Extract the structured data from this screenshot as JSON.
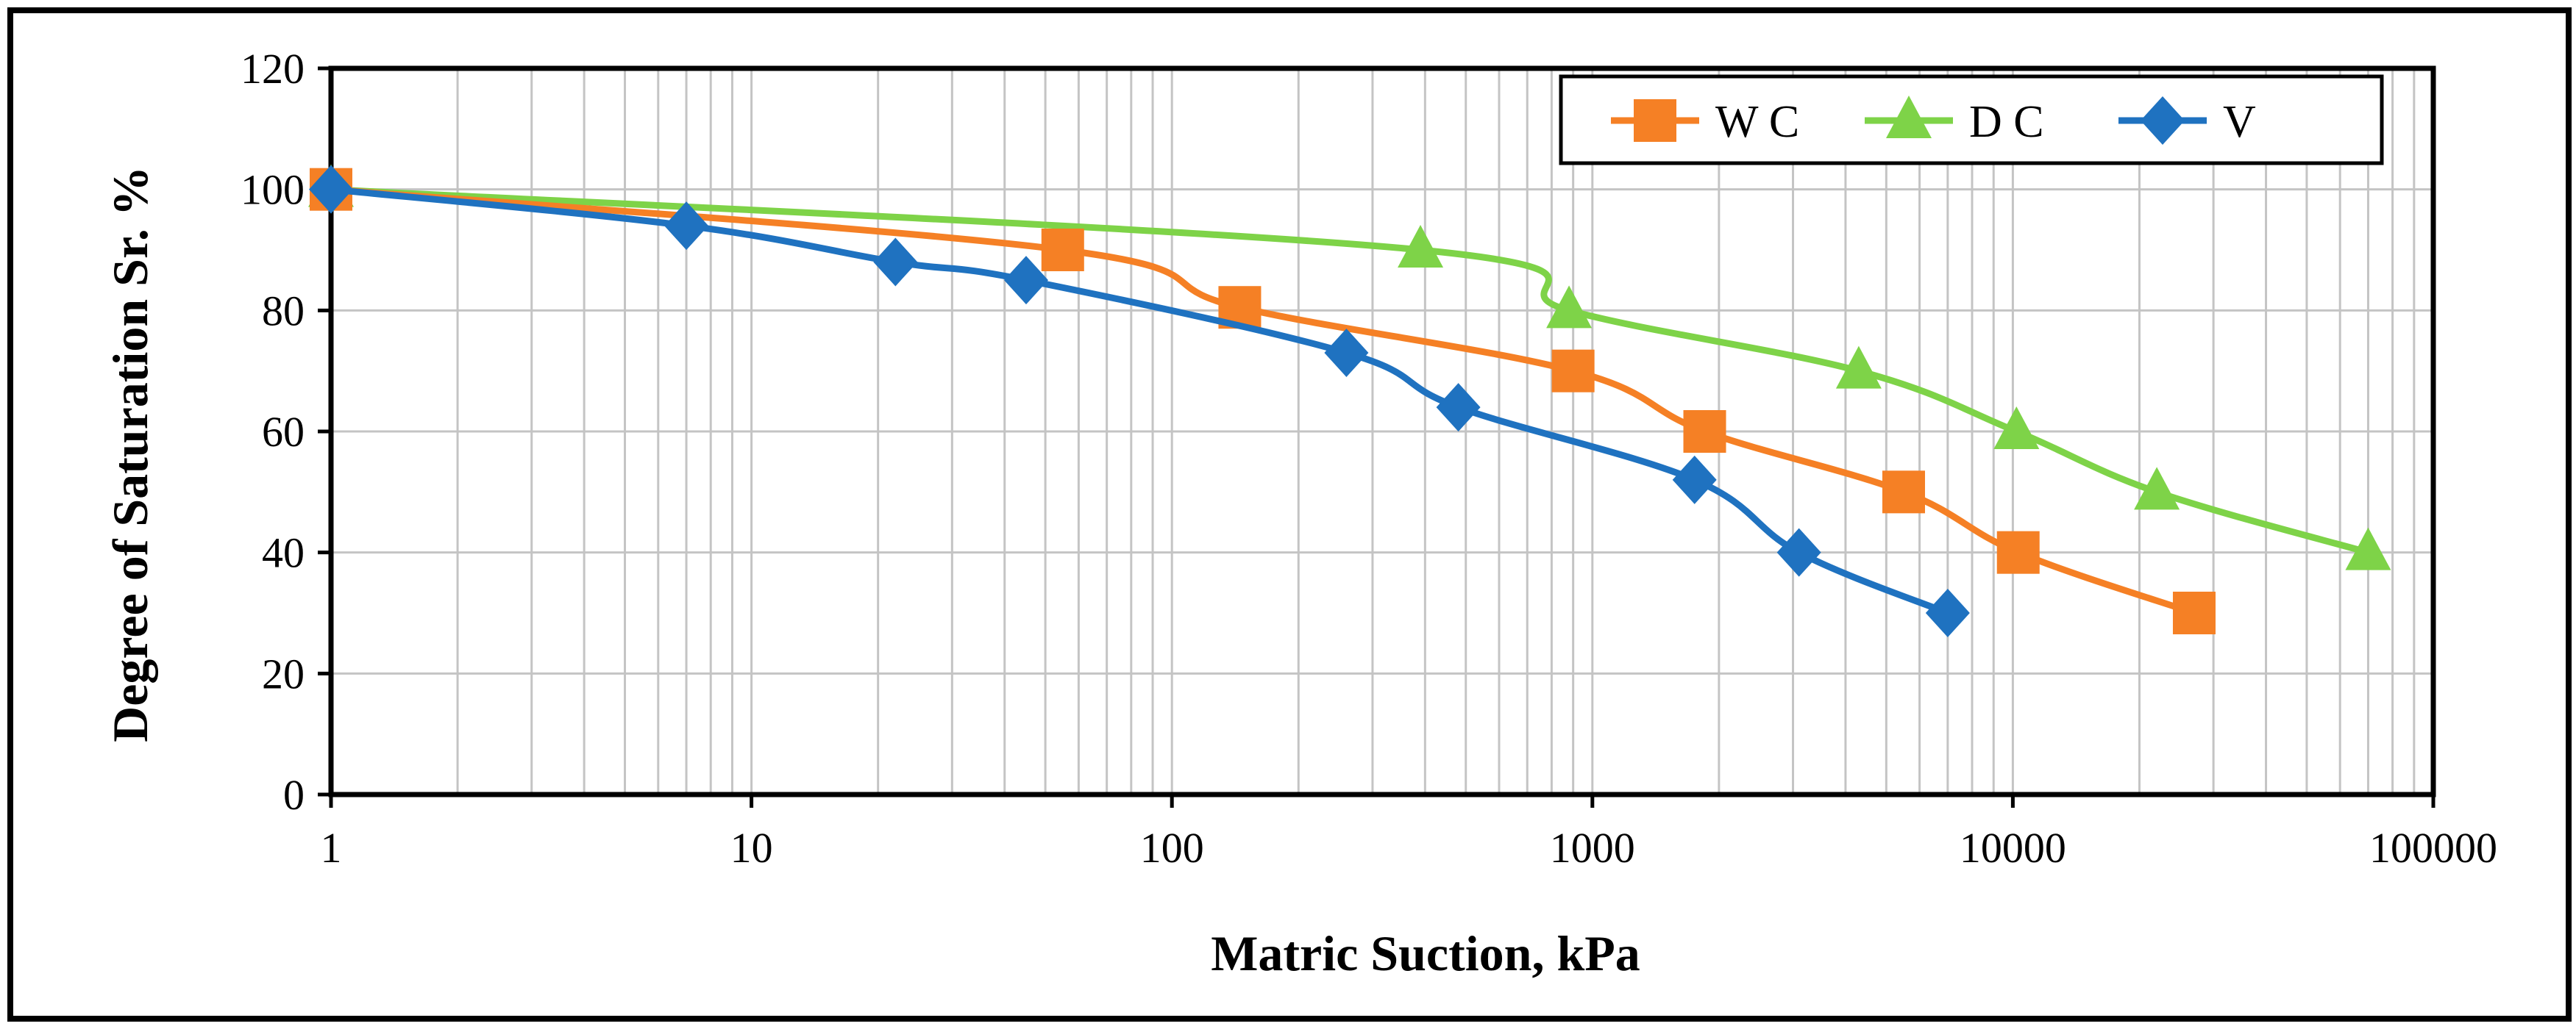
{
  "chart_data": {
    "type": "line",
    "xscale": "log",
    "xlabel": "Matric Suction, kPa",
    "ylabel": "Degree of Saturation Sr. %",
    "xlim": [
      1,
      100000
    ],
    "ylim": [
      0,
      120
    ],
    "x_ticks": [
      "1",
      "10",
      "100",
      "1000",
      "10000",
      "100000"
    ],
    "y_ticks": [
      "0",
      "20",
      "40",
      "60",
      "80",
      "100",
      "120"
    ],
    "grid": true,
    "legend_position": "top-right",
    "series": [
      {
        "name": "W C",
        "color": "#f58025",
        "marker": "square",
        "points": [
          [
            1,
            100
          ],
          [
            55,
            90
          ],
          [
            145,
            80.5
          ],
          [
            900,
            70
          ],
          [
            1850,
            60
          ],
          [
            5500,
            50
          ],
          [
            10300,
            40
          ],
          [
            27000,
            30
          ]
        ]
      },
      {
        "name": "D C",
        "color": "#7ed348",
        "marker": "triangle",
        "points": [
          [
            1,
            100
          ],
          [
            390,
            90
          ],
          [
            880,
            80
          ],
          [
            4300,
            70
          ],
          [
            10200,
            60
          ],
          [
            22000,
            50
          ],
          [
            70000,
            40
          ]
        ]
      },
      {
        "name": "V",
        "color": "#1f72c0",
        "marker": "diamond",
        "points": [
          [
            1,
            100
          ],
          [
            7,
            94
          ],
          [
            22,
            88
          ],
          [
            45,
            85
          ],
          [
            260,
            73
          ],
          [
            480,
            64
          ],
          [
            1750,
            52
          ],
          [
            3100,
            40
          ],
          [
            7000,
            30
          ]
        ]
      }
    ]
  }
}
